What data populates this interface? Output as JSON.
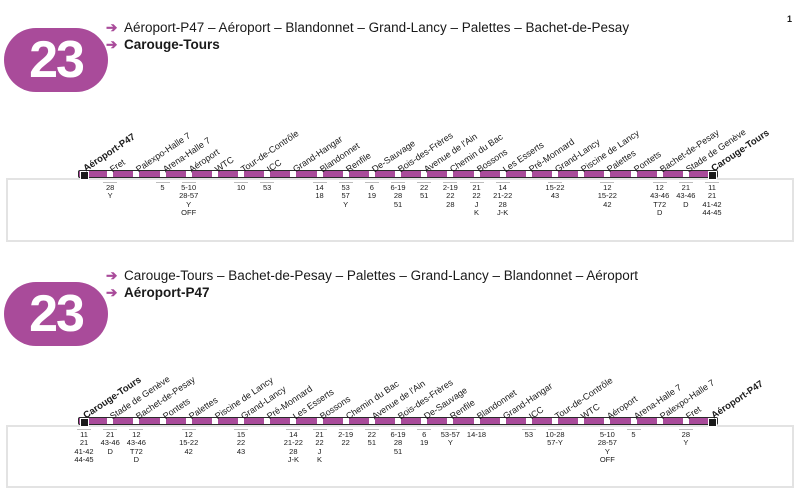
{
  "page_number": "1",
  "line_number": "23",
  "colors": {
    "line": "#a94b9a",
    "arrow": "#a94b9a"
  },
  "directions": [
    {
      "via_label": "Aéroport-P47 – Aéroport – Blandonnet – Grand-Lancy – Palettes – Bachet-de-Pesay",
      "destination_label": "Carouge-Tours",
      "stops": [
        {
          "name": "Aéroport-P47",
          "terminus": true,
          "connections": ""
        },
        {
          "name": "Fret",
          "connections": "28\nY"
        },
        {
          "name": "Palexpo-Halle 7",
          "connections": ""
        },
        {
          "name": "Arena-Halle 7",
          "connections": "5"
        },
        {
          "name": "Aéroport",
          "connections": "5-10\n28-57\nY\nOFF"
        },
        {
          "name": "WTC",
          "connections": ""
        },
        {
          "name": "Tour-de-Contrôle",
          "connections": "10"
        },
        {
          "name": "ICC",
          "connections": "53"
        },
        {
          "name": "Grand-Hangar",
          "connections": ""
        },
        {
          "name": "Blandonnet",
          "connections": "14\n18"
        },
        {
          "name": "Renfile",
          "connections": "53\n57\nY"
        },
        {
          "name": "De-Sauvage",
          "connections": "6\n19"
        },
        {
          "name": "Bois-des-Frères",
          "connections": "6-19\n28\n51"
        },
        {
          "name": "Avenue de l'Ain",
          "connections": "22\n51"
        },
        {
          "name": "Chemin du Bac",
          "connections": "2-19\n22\n28"
        },
        {
          "name": "Bossons",
          "connections": "21\n22\nJ\nK"
        },
        {
          "name": "Les Esserts",
          "connections": "14\n21-22\n28\nJ-K"
        },
        {
          "name": "Pré-Monnard",
          "connections": ""
        },
        {
          "name": "Grand-Lancy",
          "connections": "15-22\n43"
        },
        {
          "name": "Piscine de Lancy",
          "connections": ""
        },
        {
          "name": "Palettes",
          "connections": "12\n15-22\n42"
        },
        {
          "name": "Pontets",
          "connections": ""
        },
        {
          "name": "Bachet-de-Pesay",
          "connections": "12\n43-46\nT72\nD"
        },
        {
          "name": "Stade de Genève",
          "connections": "21\n43-46\nD"
        },
        {
          "name": "Carouge-Tours",
          "terminus": true,
          "connections": "11\n21\n41-42\n44-45"
        }
      ]
    },
    {
      "via_label": "Carouge-Tours – Bachet-de-Pesay – Palettes – Grand-Lancy – Blandonnet – Aéroport",
      "destination_label": "Aéroport-P47",
      "stops": [
        {
          "name": "Carouge-Tours",
          "terminus": true,
          "connections": "11\n21\n41-42\n44-45"
        },
        {
          "name": "Stade de Genève",
          "connections": "21\n43-46\nD"
        },
        {
          "name": "Bachet-de-Pesay",
          "connections": "12\n43-46\nT72\nD"
        },
        {
          "name": "Pontets",
          "connections": ""
        },
        {
          "name": "Palettes",
          "connections": "12\n15-22\n42"
        },
        {
          "name": "Piscine de Lancy",
          "connections": ""
        },
        {
          "name": "Grand-Lancy",
          "connections": "15\n22\n43"
        },
        {
          "name": "Pré-Monnard",
          "connections": ""
        },
        {
          "name": "Les Esserts",
          "connections": "14\n21-22\n28\nJ-K"
        },
        {
          "name": "Bossons",
          "connections": "21\n22\nJ\nK"
        },
        {
          "name": "Chemin du Bac",
          "connections": "2-19\n22"
        },
        {
          "name": "Avenue de l'Ain",
          "connections": "22\n51"
        },
        {
          "name": "Bois-des-Frères",
          "connections": "6-19\n28\n51"
        },
        {
          "name": "De-Sauvage",
          "connections": "6\n19"
        },
        {
          "name": "Renfile",
          "connections": "53-57\nY"
        },
        {
          "name": "Blandonnet",
          "connections": "14-18"
        },
        {
          "name": "Grand-Hangar",
          "connections": ""
        },
        {
          "name": "ICC",
          "connections": "53"
        },
        {
          "name": "Tour-de-Contrôle",
          "connections": "10-28\n57-Y"
        },
        {
          "name": "WTC",
          "connections": ""
        },
        {
          "name": "Aéroport",
          "connections": "5-10\n28-57\nY\nOFF"
        },
        {
          "name": "Arena-Halle 7",
          "connections": "5"
        },
        {
          "name": "Palexpo-Halle 7",
          "connections": ""
        },
        {
          "name": "Fret",
          "connections": "28\nY"
        },
        {
          "name": "Aéroport-P47",
          "terminus": true,
          "connections": ""
        }
      ]
    }
  ]
}
